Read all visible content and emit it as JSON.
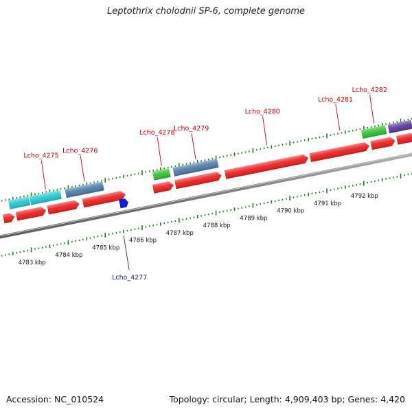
{
  "header": {
    "title": "Leptothrix cholodnii SP-6, complete genome"
  },
  "footer": {
    "accession": "Accession: NC_010524",
    "summary": "Topology: circular; Length: 4,909,403 bp; Genes: 4,420"
  },
  "colors": {
    "forward_cds": "#1ec8cf",
    "steel_gene": "#4a7aa8",
    "rna_gene": "#2fc12f",
    "reverse_cds": "#ee1a1a",
    "misc_feature": "#0a1fe0",
    "purple_gene": "#5a3a9a",
    "forward_label": "#cc0000",
    "reverse_label": "#1a1aaa",
    "tick": "#1a7a1a",
    "backbone": "#888888"
  },
  "ruler": {
    "start_kbp": 4783,
    "end_kbp": 4792,
    "unit": "kbp",
    "labels": [
      "4783 kbp",
      "4784 kbp",
      "4785 kbp",
      "4786 kbp",
      "4787 kbp",
      "4788 kbp",
      "4789 kbp",
      "4790 kbp",
      "4791 kbp",
      "4792 kbp"
    ]
  },
  "genes": [
    {
      "id": "f1",
      "row": "forward",
      "start": 4782.4,
      "end": 4782.95,
      "color": "#1ec8cf",
      "label": ""
    },
    {
      "id": "f2",
      "row": "forward",
      "start": 4782.97,
      "end": 4783.8,
      "color": "#1ec8cf",
      "label": "Lcho_4275",
      "label_side": "top"
    },
    {
      "id": "f3",
      "row": "forward",
      "start": 4783.93,
      "end": 4784.95,
      "color": "#4a7aa8",
      "label": "Lcho_4276",
      "label_side": "top"
    },
    {
      "id": "f4",
      "row": "forward",
      "start": 4786.3,
      "end": 4786.75,
      "color": "#2fc12f",
      "label": "Lcho_4278",
      "label_side": "top"
    },
    {
      "id": "f5",
      "row": "forward",
      "start": 4786.85,
      "end": 4788.05,
      "color": "#4a7aa8",
      "label": "Lcho_4279",
      "label_side": "top"
    },
    {
      "id": "f6",
      "row": "forward",
      "start": 4791.95,
      "end": 4792.6,
      "color": "#2fc12f",
      "label": "Lcho_4282",
      "label_side": "top"
    },
    {
      "id": "f7",
      "row": "forward",
      "start": 4792.67,
      "end": 4793.3,
      "color": "#5a3a9a",
      "label": ""
    },
    {
      "id": "r0",
      "row": "reverse",
      "start": 4782.25,
      "end": 4782.55,
      "color": "#ee1a1a",
      "label": ""
    },
    {
      "id": "r1",
      "row": "reverse",
      "start": 4782.6,
      "end": 4783.4,
      "color": "#ee1a1a",
      "label": ""
    },
    {
      "id": "r2",
      "row": "reverse",
      "start": 4783.45,
      "end": 4784.3,
      "color": "#ee1a1a",
      "label": ""
    },
    {
      "id": "r3",
      "row": "reverse",
      "start": 4784.4,
      "end": 4785.55,
      "color": "#ee1a1a",
      "label": ""
    },
    {
      "id": "r4",
      "row": "reverse",
      "start": 4786.3,
      "end": 4786.85,
      "color": "#ee1a1a",
      "label": ""
    },
    {
      "id": "r5",
      "row": "reverse",
      "start": 4786.9,
      "end": 4788.15,
      "color": "#ee1a1a",
      "label": ""
    },
    {
      "id": "r6",
      "row": "reverse",
      "start": 4788.25,
      "end": 4790.5,
      "color": "#ee1a1a",
      "label": "Lcho_4280",
      "label_side": "top"
    },
    {
      "id": "r7",
      "row": "reverse",
      "start": 4790.55,
      "end": 4792.15,
      "color": "#ee1a1a",
      "label": "Lcho_4281",
      "label_side": "top"
    },
    {
      "id": "r8",
      "row": "reverse",
      "start": 4792.2,
      "end": 4792.85,
      "color": "#ee1a1a",
      "label": ""
    },
    {
      "id": "r9",
      "row": "reverse",
      "start": 4792.9,
      "end": 4793.4,
      "color": "#ee1a1a",
      "label": ""
    },
    {
      "id": "m1",
      "row": "misc",
      "start": 4785.4,
      "end": 4785.6,
      "color": "#0a1fe0",
      "label": "Lcho_4277",
      "label_side": "bottom"
    }
  ]
}
